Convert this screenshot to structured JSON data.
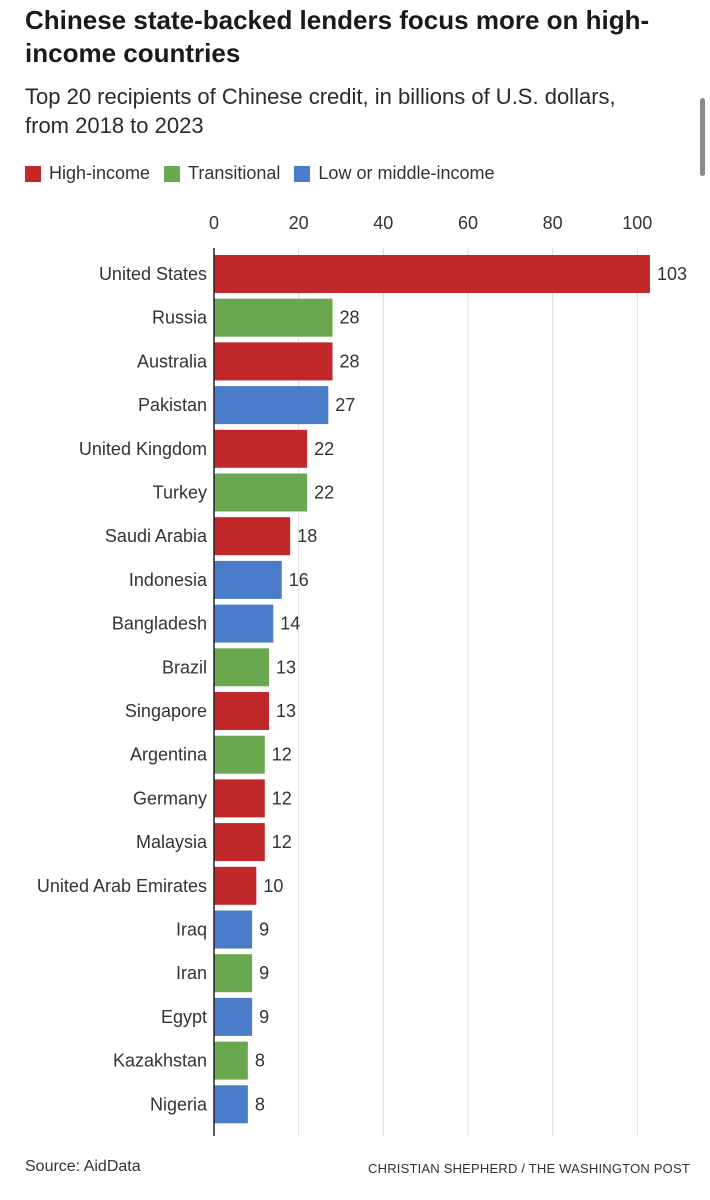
{
  "header": {
    "title": "Chinese state-backed lenders focus more on high-income countries",
    "subtitle": "Top 20 recipients of Chinese credit, in billions of U.S. dollars, from 2018 to 2023"
  },
  "legend": {
    "items": [
      {
        "label": "High-income",
        "color": "#c0282a"
      },
      {
        "label": "Transitional",
        "color": "#6aa84f"
      },
      {
        "label": "Low or middle-income",
        "color": "#4a7cc9"
      }
    ]
  },
  "footer": {
    "source": "Source: AidData",
    "credit": "CHRISTIAN SHEPHERD / THE WASHINGTON POST"
  },
  "chart_data": {
    "type": "bar",
    "orientation": "horizontal",
    "title": "Chinese state-backed lenders focus more on high-income countries",
    "subtitle": "Top 20 recipients of Chinese credit, in billions of U.S. dollars, from 2018 to 2023",
    "xlim": [
      0,
      103
    ],
    "xticks": [
      0,
      20,
      40,
      60,
      80,
      100
    ],
    "grid": true,
    "axis_position": "top",
    "legend_position": "top-left",
    "categories": [
      "United States",
      "Russia",
      "Australia",
      "Pakistan",
      "United Kingdom",
      "Turkey",
      "Saudi Arabia",
      "Indonesia",
      "Bangladesh",
      "Brazil",
      "Singapore",
      "Argentina",
      "Germany",
      "Malaysia",
      "United Arab Emirates",
      "Iraq",
      "Iran",
      "Egypt",
      "Kazakhstan",
      "Nigeria"
    ],
    "values": [
      103,
      28,
      28,
      27,
      22,
      22,
      18,
      16,
      14,
      13,
      13,
      12,
      12,
      12,
      10,
      9,
      9,
      9,
      8,
      8
    ],
    "groups": [
      "High-income",
      "Transitional",
      "High-income",
      "Low or middle-income",
      "High-income",
      "Transitional",
      "High-income",
      "Low or middle-income",
      "Low or middle-income",
      "Transitional",
      "High-income",
      "Transitional",
      "High-income",
      "High-income",
      "High-income",
      "Low or middle-income",
      "Transitional",
      "Low or middle-income",
      "Transitional",
      "Low or middle-income"
    ],
    "colors": {
      "High-income": "#c0282a",
      "Transitional": "#6aa84f",
      "Low or middle-income": "#4a7cc9"
    }
  }
}
